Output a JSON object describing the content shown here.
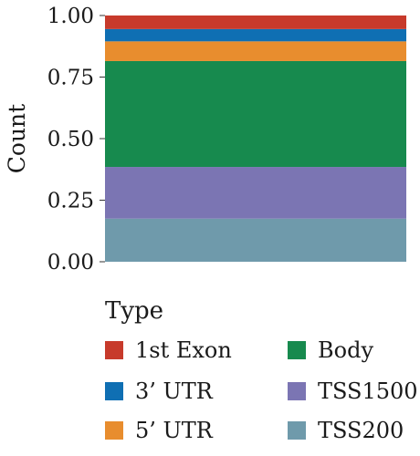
{
  "chart_data": {
    "type": "bar",
    "stacked": true,
    "categories": [
      ""
    ],
    "ylabel": "Count",
    "xlabel": "",
    "ylim": [
      0,
      1
    ],
    "yticks": [
      "0.00",
      "0.25",
      "0.50",
      "0.75",
      "1.00"
    ],
    "grid": false,
    "legend": {
      "title": "Type",
      "position": "bottom"
    },
    "series": [
      {
        "name": "TSS200",
        "values": [
          0.175
        ],
        "color": "#6f9aab"
      },
      {
        "name": "TSS1500",
        "values": [
          0.21
        ],
        "color": "#7b75b3"
      },
      {
        "name": "Body",
        "values": [
          0.43
        ],
        "color": "#178a4e"
      },
      {
        "name": "5’ UTR",
        "values": [
          0.08
        ],
        "color": "#e88d2e"
      },
      {
        "name": "3’ UTR",
        "values": [
          0.05
        ],
        "color": "#0f6fb3"
      },
      {
        "name": "1st Exon",
        "values": [
          0.055
        ],
        "color": "#c73a2b"
      }
    ],
    "legend_order": [
      "1st Exon",
      "3’ UTR",
      "5’ UTR",
      "Body",
      "TSS1500",
      "TSS200"
    ]
  }
}
